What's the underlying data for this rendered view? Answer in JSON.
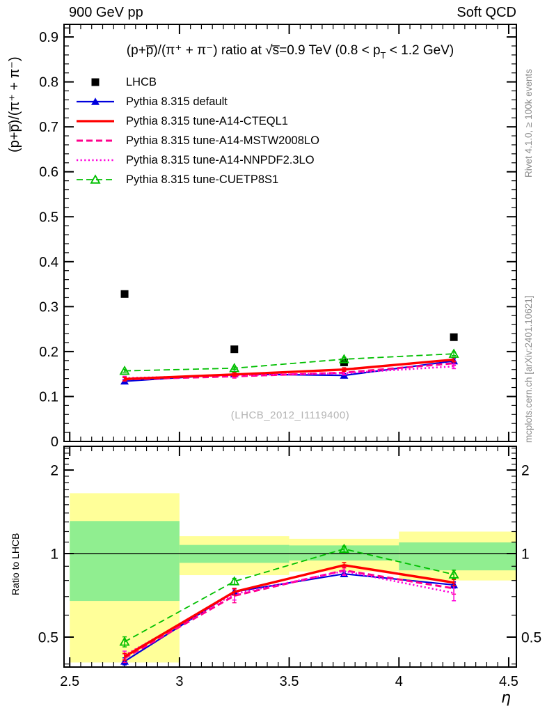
{
  "header": {
    "left": "900 GeV pp",
    "right": "Soft QCD"
  },
  "side_notes": {
    "top_right": "Rivet 4.1.0, ≥ 100k events",
    "bottom_right": "mcplots.cern.ch [arXiv:2401.10621]"
  },
  "watermark": "(LHCB_2012_I1119400)",
  "chart_data": {
    "type": "line",
    "title": "(p+p̅)/(π⁺ + π⁻) ratio at √s̅=0.9 TeV (0.8 < pT < 1.2 GeV)",
    "title_pre": "(p+p̅)/(π⁺ + π⁻) ratio at √s̅=0.9 TeV (0.8 < p",
    "title_sub": "T",
    "title_post": " < 1.2 GeV)",
    "xlabel": "η",
    "x": [
      2.75,
      3.25,
      3.75,
      4.25
    ],
    "xlim": [
      2.474,
      4.535
    ],
    "xticks": [
      {
        "v": 2.5,
        "label": "2.5"
      },
      {
        "v": 3.0,
        "label": "3"
      },
      {
        "v": 3.5,
        "label": "3.5"
      },
      {
        "v": 4.0,
        "label": "4"
      },
      {
        "v": 4.5,
        "label": "4.5"
      }
    ],
    "xtick_minor_step": 0.05,
    "top_panel": {
      "ylabel": "(p+p̅)/(π⁺ + π⁻)",
      "ylim": [
        0,
        0.928
      ],
      "yticks": [
        {
          "v": 0.0,
          "label": "0"
        },
        {
          "v": 0.1,
          "label": "0.1"
        },
        {
          "v": 0.2,
          "label": "0.2"
        },
        {
          "v": 0.3,
          "label": "0.3"
        },
        {
          "v": 0.4,
          "label": "0.4"
        },
        {
          "v": 0.5,
          "label": "0.5"
        },
        {
          "v": 0.6,
          "label": "0.6"
        },
        {
          "v": 0.7,
          "label": "0.7"
        },
        {
          "v": 0.8,
          "label": "0.8"
        },
        {
          "v": 0.9,
          "label": "0.9"
        }
      ],
      "ytick_minor_step": 0.02,
      "grid": false
    },
    "ratio_panel": {
      "ylabel": "Ratio to LHCB",
      "scale": "log",
      "ylim": [
        0.39,
        2.435
      ],
      "reference_line": 1,
      "yticks": [
        {
          "v": 0.5,
          "label": "0.5"
        },
        {
          "v": 1,
          "label": "1"
        },
        {
          "v": 2,
          "label": "2"
        }
      ],
      "yticks_minor": [
        0.4,
        0.6,
        0.7,
        0.8,
        0.9,
        1.1,
        1.2,
        1.3,
        1.4,
        1.5,
        1.6,
        1.7,
        1.8,
        1.9,
        2.1,
        2.2,
        2.3,
        2.4
      ],
      "band_outer_color": "#ffff99",
      "band_inner_color": "#90ee90",
      "bands": [
        {
          "x0": 2.5,
          "x1": 3.0,
          "outer": [
            0.405,
            1.65
          ],
          "inner": [
            0.675,
            1.31
          ]
        },
        {
          "x0": 3.0,
          "x1": 3.5,
          "outer": [
            0.836,
            1.155
          ],
          "inner": [
            0.926,
            1.074
          ]
        },
        {
          "x0": 3.5,
          "x1": 4.0,
          "outer": [
            0.862,
            1.13
          ],
          "inner": [
            0.944,
            1.07
          ]
        },
        {
          "x0": 4.0,
          "x1": 4.535,
          "outer": [
            0.8,
            1.2
          ],
          "inner": [
            0.87,
            1.097
          ]
        }
      ]
    },
    "series": [
      {
        "name": "LHCB",
        "color": "#000000",
        "line": "none",
        "width": 0,
        "marker": "square-filled",
        "top": [
          0.328,
          0.205,
          0.176,
          0.232
        ],
        "ratio": null
      },
      {
        "name": "Pythia 8.315 default",
        "color": "#0000dd",
        "line": "solid",
        "width": 2.2,
        "marker": "triangle-filled",
        "top": [
          0.134,
          0.15,
          0.147,
          0.179
        ],
        "top_err": [
          0.004,
          0.004,
          0.004,
          0.005
        ],
        "ratio": [
          0.409,
          0.728,
          0.845,
          0.771
        ],
        "ratio_err": [
          0.012,
          0.018,
          0.018,
          0.02
        ]
      },
      {
        "name": "Pythia 8.315 tune-A14-CTEQL1",
        "color": "#ff0000",
        "line": "solid",
        "width": 3.4,
        "marker": "none",
        "top": [
          0.139,
          0.149,
          0.16,
          0.182
        ],
        "top_err": [
          0.004,
          0.004,
          0.004,
          0.005
        ],
        "ratio": [
          0.425,
          0.728,
          0.908,
          0.786
        ],
        "ratio_err": [
          0.012,
          0.02,
          0.02,
          0.02
        ]
      },
      {
        "name": "Pythia 8.315 tune-A14-MSTW2008LO",
        "color": "#ff008c",
        "line": "dashed",
        "width": 3.0,
        "marker": "none",
        "top": [
          0.138,
          0.145,
          0.153,
          0.174
        ],
        "top_err": [
          0.004,
          0.004,
          0.004,
          0.005
        ],
        "ratio": [
          0.42,
          0.705,
          0.87,
          0.749
        ],
        "ratio_err": [
          0.015,
          0.04,
          0.03,
          0.035
        ]
      },
      {
        "name": "Pythia 8.315 tune-A14-NNPDF2.3LO",
        "color": "#ff00dc",
        "line": "dotted",
        "width": 2.6,
        "marker": "none",
        "top": [
          0.141,
          0.147,
          0.152,
          0.167
        ],
        "top_err": [
          0.004,
          0.004,
          0.004,
          0.005
        ],
        "ratio": [
          0.43,
          0.715,
          0.865,
          0.721
        ],
        "ratio_err": [
          0.015,
          0.035,
          0.03,
          0.045
        ]
      },
      {
        "name": "Pythia 8.315 tune-CUETP8S1",
        "color": "#00bf00",
        "line": "dashed",
        "width": 1.8,
        "marker": "triangle-open",
        "top": [
          0.157,
          0.163,
          0.183,
          0.195
        ],
        "top_err": [
          0.003,
          0.003,
          0.004,
          0.004
        ],
        "ratio": [
          0.481,
          0.794,
          1.039,
          0.841
        ],
        "ratio_err": [
          0.02,
          0.02,
          0.025,
          0.03
        ]
      }
    ]
  }
}
